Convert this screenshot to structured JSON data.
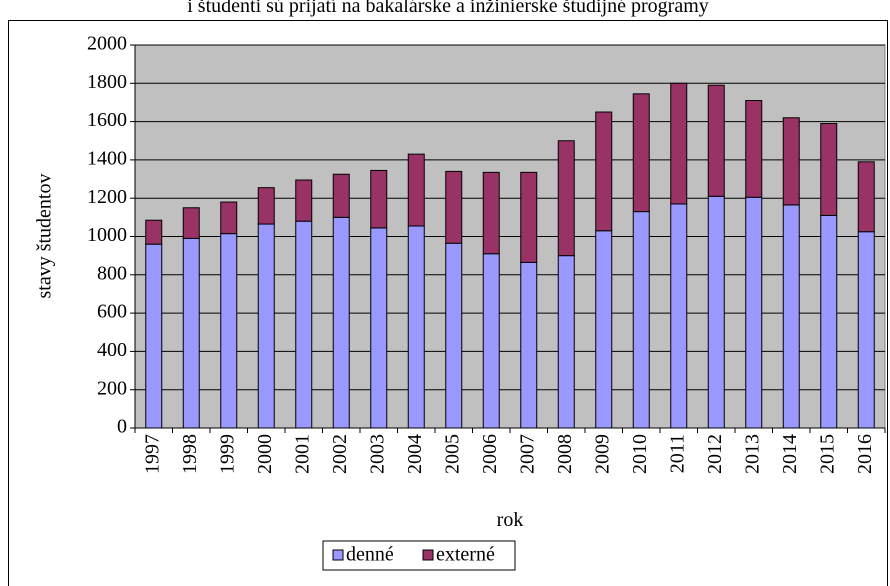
{
  "chart_data": {
    "type": "stacked_bar",
    "title": "i študenti sú prijatí na bakalárske a inžinierske študijné programy",
    "x_label": "rok",
    "y_label": "stavy študentov",
    "categories": [
      "1997",
      "1998",
      "1999",
      "2000",
      "2001",
      "2002",
      "2003",
      "2004",
      "2005",
      "2006",
      "2007",
      "2008",
      "2009",
      "2010",
      "2011",
      "2012",
      "2013",
      "2014",
      "2015",
      "2016"
    ],
    "series": [
      {
        "name": "denné",
        "color": "#9999ff",
        "values": [
          960,
          990,
          1015,
          1065,
          1080,
          1100,
          1045,
          1055,
          965,
          910,
          865,
          900,
          1030,
          1130,
          1170,
          1210,
          1205,
          1165,
          1110,
          1025
        ]
      },
      {
        "name": "externé",
        "color": "#993366",
        "values": [
          125,
          160,
          165,
          190,
          215,
          225,
          300,
          375,
          375,
          425,
          470,
          600,
          620,
          615,
          630,
          580,
          505,
          455,
          480,
          365
        ]
      }
    ],
    "ylim": [
      0,
      2000
    ],
    "yticks": [
      0,
      200,
      400,
      600,
      800,
      1000,
      1200,
      1400,
      1600,
      1800,
      2000
    ],
    "grid": true,
    "legend": "bottom"
  }
}
